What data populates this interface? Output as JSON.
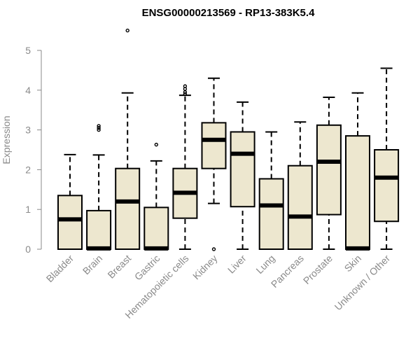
{
  "chart_data": {
    "type": "boxplot",
    "title": "ENSG00000213569 - RP13-383K5.4",
    "xlabel": "",
    "ylabel": "Expression",
    "ylim": [
      0,
      5
    ],
    "yticks": [
      0,
      1,
      2,
      3,
      4,
      5
    ],
    "grid": false,
    "box_color": "#ede7cf",
    "axis_color": "#8a8a8a",
    "categories": [
      "Bladder",
      "Brain",
      "Breast",
      "Gastric",
      "Hematopoietic cells",
      "Kidney",
      "Liver",
      "Lung",
      "Pancreas",
      "Prostate",
      "Skin",
      "Unknown / Other"
    ],
    "boxes": [
      {
        "min": 0,
        "q1": 0,
        "median": 0.75,
        "q3": 1.35,
        "max": 2.38,
        "outliers": []
      },
      {
        "min": 0,
        "q1": 0,
        "median": 0.02,
        "q3": 0.97,
        "max": 2.37,
        "outliers": [
          3.0,
          3.05,
          3.1
        ]
      },
      {
        "min": 0,
        "q1": 0,
        "median": 1.2,
        "q3": 2.03,
        "max": 3.93,
        "outliers": [
          5.5
        ]
      },
      {
        "min": 0,
        "q1": 0,
        "median": 0.02,
        "q3": 1.05,
        "max": 2.22,
        "outliers": [
          2.63
        ]
      },
      {
        "min": 0,
        "q1": 0.78,
        "median": 1.42,
        "q3": 2.03,
        "max": 3.87,
        "outliers": [
          3.9,
          3.95,
          4.03,
          4.1
        ]
      },
      {
        "min": 1.15,
        "q1": 2.03,
        "median": 2.75,
        "q3": 3.18,
        "max": 4.3,
        "outliers": [
          0
        ]
      },
      {
        "min": 0,
        "q1": 1.07,
        "median": 2.4,
        "q3": 2.95,
        "max": 3.7,
        "outliers": []
      },
      {
        "min": 0,
        "q1": 0,
        "median": 1.1,
        "q3": 1.77,
        "max": 2.95,
        "outliers": []
      },
      {
        "min": 0,
        "q1": 0,
        "median": 0.82,
        "q3": 2.1,
        "max": 3.2,
        "outliers": []
      },
      {
        "min": 0,
        "q1": 0.87,
        "median": 2.2,
        "q3": 3.12,
        "max": 3.82,
        "outliers": []
      },
      {
        "min": 0,
        "q1": 0,
        "median": 0.02,
        "q3": 2.85,
        "max": 3.93,
        "outliers": []
      },
      {
        "min": 0,
        "q1": 0.7,
        "median": 1.8,
        "q3": 2.5,
        "max": 4.55,
        "outliers": []
      }
    ]
  }
}
